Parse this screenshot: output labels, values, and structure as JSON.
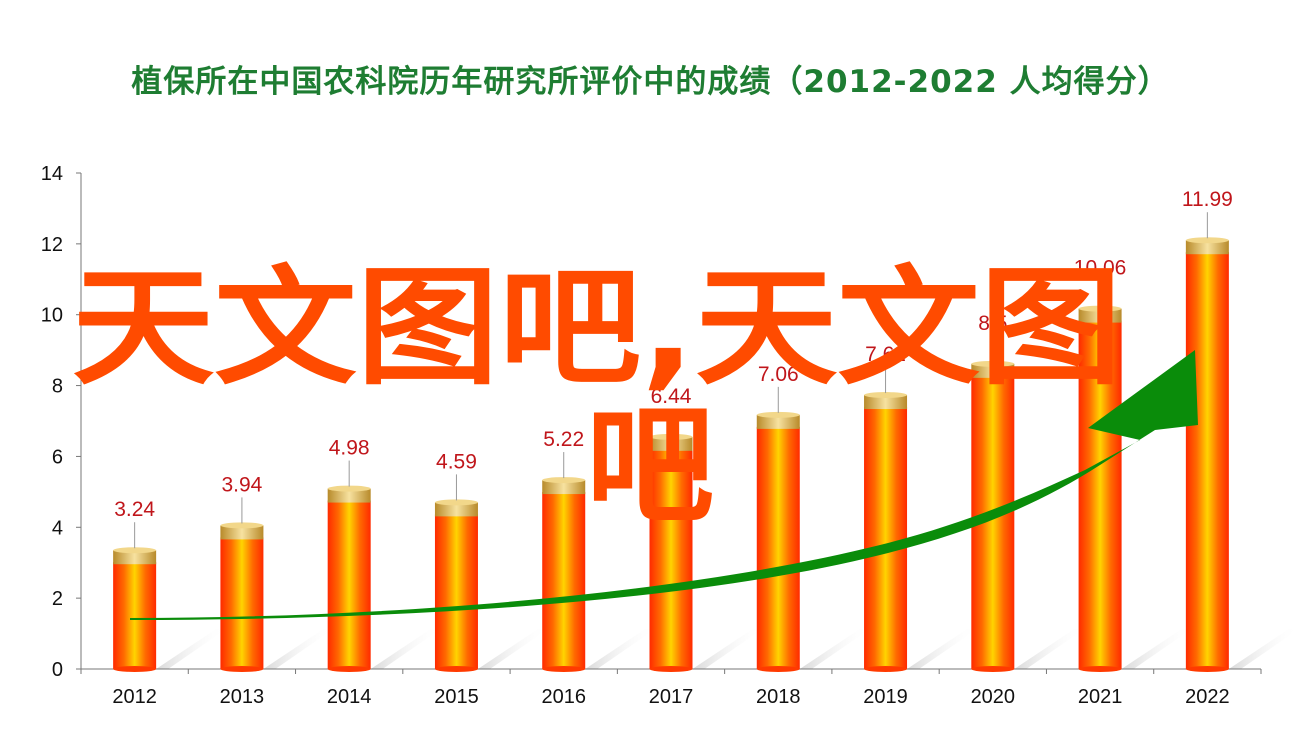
{
  "chart_data": {
    "type": "bar",
    "title": "植保所在中国农科院历年研究所评价中的成绩（2012-2022  人均得分）",
    "categories": [
      "2012",
      "2013",
      "2014",
      "2015",
      "2016",
      "2017",
      "2018",
      "2019",
      "2020",
      "2021",
      "2022"
    ],
    "values": [
      3.24,
      3.94,
      4.98,
      4.59,
      5.22,
      6.44,
      7.06,
      7.62,
      8.5,
      10.06,
      11.99
    ],
    "value_labels": [
      "3.24",
      "3.94",
      "4.98",
      "4.59",
      "5.22",
      "6.44",
      "7.06",
      "7.62",
      "8.5",
      "10.06",
      "11.99"
    ],
    "ylim": [
      0,
      14
    ],
    "yticks": [
      0,
      2,
      4,
      6,
      8,
      10,
      12,
      14
    ],
    "xlabel": "",
    "ylabel": "",
    "grid": false,
    "legend": "none",
    "trend_arrow": true,
    "colors": {
      "bar_center": "#ffd400",
      "bar_edge": "#ff2a00",
      "cap": "#e8c061",
      "arrow": "#0a8c0a",
      "title": "#1e7d32",
      "label": "#c0161b"
    }
  },
  "watermark": {
    "line1": "天文图吧,天文图",
    "line2": "吧"
  }
}
